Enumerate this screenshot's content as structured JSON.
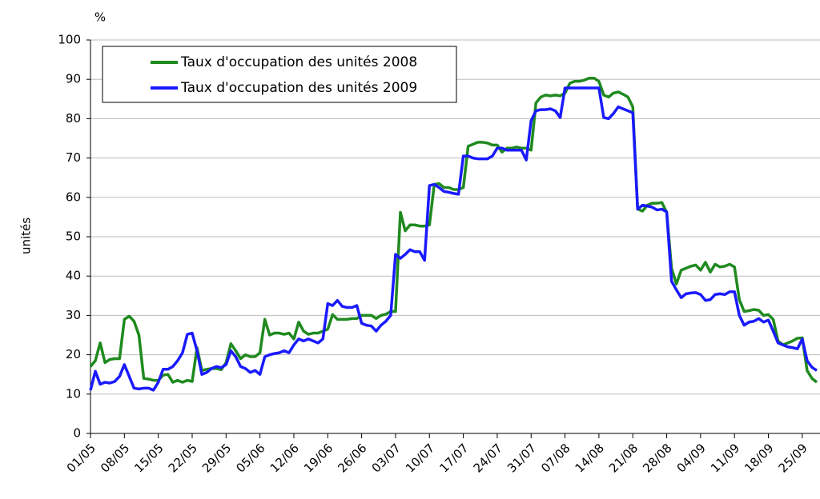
{
  "chart_data": {
    "type": "line",
    "ylabel": "unités",
    "yunit": "%",
    "categories": [
      "01/05",
      null,
      null,
      null,
      null,
      null,
      null,
      "08/05",
      null,
      null,
      null,
      null,
      null,
      null,
      "15/05",
      null,
      null,
      null,
      null,
      null,
      null,
      "22/05",
      null,
      null,
      null,
      null,
      null,
      null,
      "29/05",
      null,
      null,
      null,
      null,
      null,
      null,
      "05/06",
      null,
      null,
      null,
      null,
      null,
      null,
      "12/06",
      null,
      null,
      null,
      null,
      null,
      null,
      "19/06",
      null,
      null,
      null,
      null,
      null,
      null,
      "26/06",
      null,
      null,
      null,
      null,
      null,
      null,
      "03/07",
      null,
      null,
      null,
      null,
      null,
      null,
      "10/07",
      null,
      null,
      null,
      null,
      null,
      null,
      "17/07",
      null,
      null,
      null,
      null,
      null,
      null,
      "24/07",
      null,
      null,
      null,
      null,
      null,
      null,
      "31/07",
      null,
      null,
      null,
      null,
      null,
      null,
      "07/08",
      null,
      null,
      null,
      null,
      null,
      null,
      "14/08",
      null,
      null,
      null,
      null,
      null,
      null,
      "21/08",
      null,
      null,
      null,
      null,
      null,
      null,
      "28/08",
      null,
      null,
      null,
      null,
      null,
      null,
      "04/09",
      null,
      null,
      null,
      null,
      null,
      null,
      "11/09",
      null,
      null,
      null,
      null,
      null,
      null,
      "18/09",
      null,
      null,
      null,
      null,
      null,
      null,
      "25/09",
      null,
      null,
      null
    ],
    "series": [
      {
        "name": "Taux d'occupation des unités 2008",
        "color": "#1f8a1f",
        "values": [
          17,
          18.5,
          23,
          18,
          18.8,
          19,
          19,
          29,
          29.8,
          28.5,
          25,
          14,
          13.8,
          13.5,
          13.5,
          14.8,
          15,
          13,
          13.5,
          13,
          13.5,
          13.2,
          21.8,
          16,
          16.3,
          16.5,
          16.5,
          16.2,
          18,
          22.8,
          21,
          19,
          20,
          19.5,
          19.5,
          20.5,
          29,
          25,
          25.5,
          25.5,
          25.2,
          25.5,
          24,
          28.3,
          26,
          25.2,
          25.5,
          25.5,
          26,
          26.5,
          30.2,
          29,
          29,
          29,
          29.2,
          29.2,
          30,
          30,
          30,
          29.2,
          30,
          30.3,
          31,
          31,
          56.2,
          51.5,
          53,
          53,
          52.7,
          52.7,
          53,
          63.3,
          63.5,
          62.5,
          62.5,
          62,
          62,
          62.5,
          73,
          73.5,
          74,
          74,
          73.8,
          73.3,
          73.3,
          71.5,
          72.5,
          72.5,
          72.8,
          72.5,
          72.5,
          72,
          84,
          85.5,
          86,
          85.8,
          86,
          85.8,
          86.5,
          89,
          89.5,
          89.5,
          89.8,
          90.3,
          90.3,
          89.5,
          86,
          85.5,
          86.5,
          86.8,
          86.2,
          85.5,
          83,
          57,
          56.5,
          58,
          58.5,
          58.5,
          58.7,
          56.2,
          42,
          38,
          41.5,
          42,
          42.5,
          42.8,
          41.5,
          43.5,
          41,
          43,
          42.3,
          42.5,
          43,
          42.3,
          34,
          31,
          31.2,
          31.5,
          31.3,
          30,
          30.2,
          29,
          23.5,
          22.5,
          23,
          23.5,
          24.2,
          24.3,
          16,
          14,
          13
        ]
      },
      {
        "name": "Taux d'occupation des unités 2009",
        "color": "#1a1aff",
        "values": [
          11,
          15.8,
          12.5,
          13,
          12.8,
          13.2,
          14.5,
          17.5,
          14.5,
          11.5,
          11.3,
          11.5,
          11.5,
          11,
          13,
          16.3,
          16.3,
          17,
          18.5,
          20.5,
          25.2,
          25.5,
          21,
          15,
          15.5,
          16.5,
          17,
          16.7,
          17.5,
          21,
          19.5,
          17,
          16.5,
          15.5,
          16,
          15,
          19.5,
          20,
          20.3,
          20.5,
          21,
          20.5,
          22.5,
          24,
          23.5,
          24,
          23.5,
          23,
          24,
          33,
          32.5,
          33.8,
          32.3,
          32,
          32,
          32.5,
          28,
          27.5,
          27.3,
          26,
          27.5,
          28.5,
          30,
          45.5,
          44.5,
          45.5,
          46.7,
          46.2,
          46.2,
          44,
          63,
          63.3,
          62.5,
          61.5,
          61.3,
          61,
          60.8,
          70.5,
          70.5,
          70,
          69.8,
          69.8,
          69.8,
          70.5,
          72.5,
          72.5,
          72,
          72,
          72,
          72,
          69.5,
          79.5,
          82,
          82.3,
          82.3,
          82.5,
          82,
          80.3,
          87.8,
          87.8,
          87.8,
          87.8,
          87.8,
          87.8,
          87.8,
          87.8,
          80.3,
          80,
          81.3,
          83,
          82.5,
          82,
          81.5,
          57,
          58,
          57.8,
          57.5,
          56.8,
          57,
          56.3,
          38.7,
          36.5,
          34.5,
          35.5,
          35.7,
          35.8,
          35.3,
          33.8,
          34,
          35.3,
          35.5,
          35.3,
          36,
          36,
          30,
          27.5,
          28.3,
          28.5,
          29.2,
          28.3,
          28.8,
          26,
          23,
          22.5,
          22,
          21.8,
          21.5,
          24,
          18.5,
          16.8,
          16
        ]
      }
    ],
    "ylim": [
      0,
      100
    ],
    "yticks": [
      0,
      10,
      20,
      30,
      40,
      50,
      60,
      70,
      80,
      90,
      100
    ],
    "grid": true,
    "legend": "upper-left"
  }
}
